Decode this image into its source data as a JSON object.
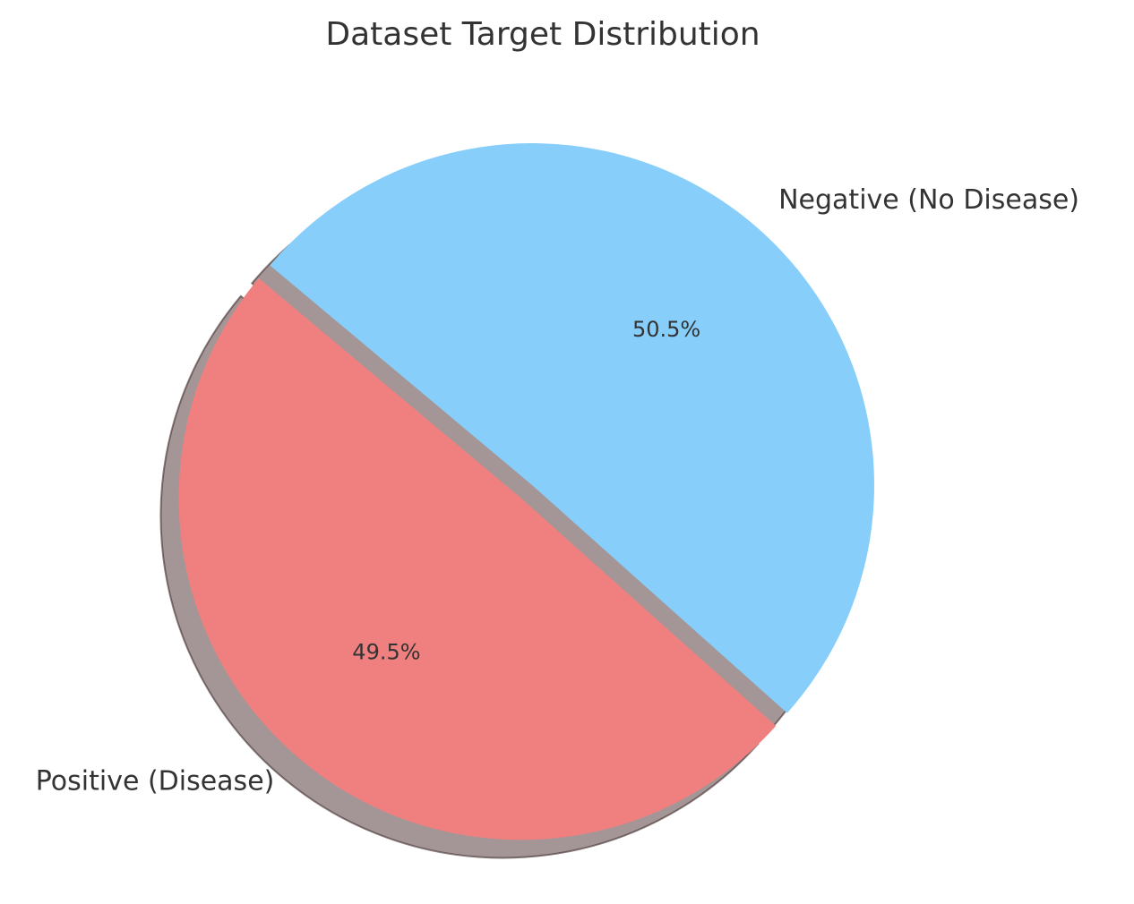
{
  "chart_data": {
    "type": "pie",
    "title": "Dataset Target Distribution",
    "start_angle_deg": 140,
    "direction": "counterclockwise",
    "shadow": true,
    "slices": [
      {
        "label": "Positive (Disease)",
        "value": 49.5,
        "pct_label": "49.5%",
        "color": "#F08080",
        "explode": 0.05
      },
      {
        "label": "Negative (No Disease)",
        "value": 50.5,
        "pct_label": "50.5%",
        "color": "#87CEFA",
        "explode": 0
      }
    ]
  }
}
